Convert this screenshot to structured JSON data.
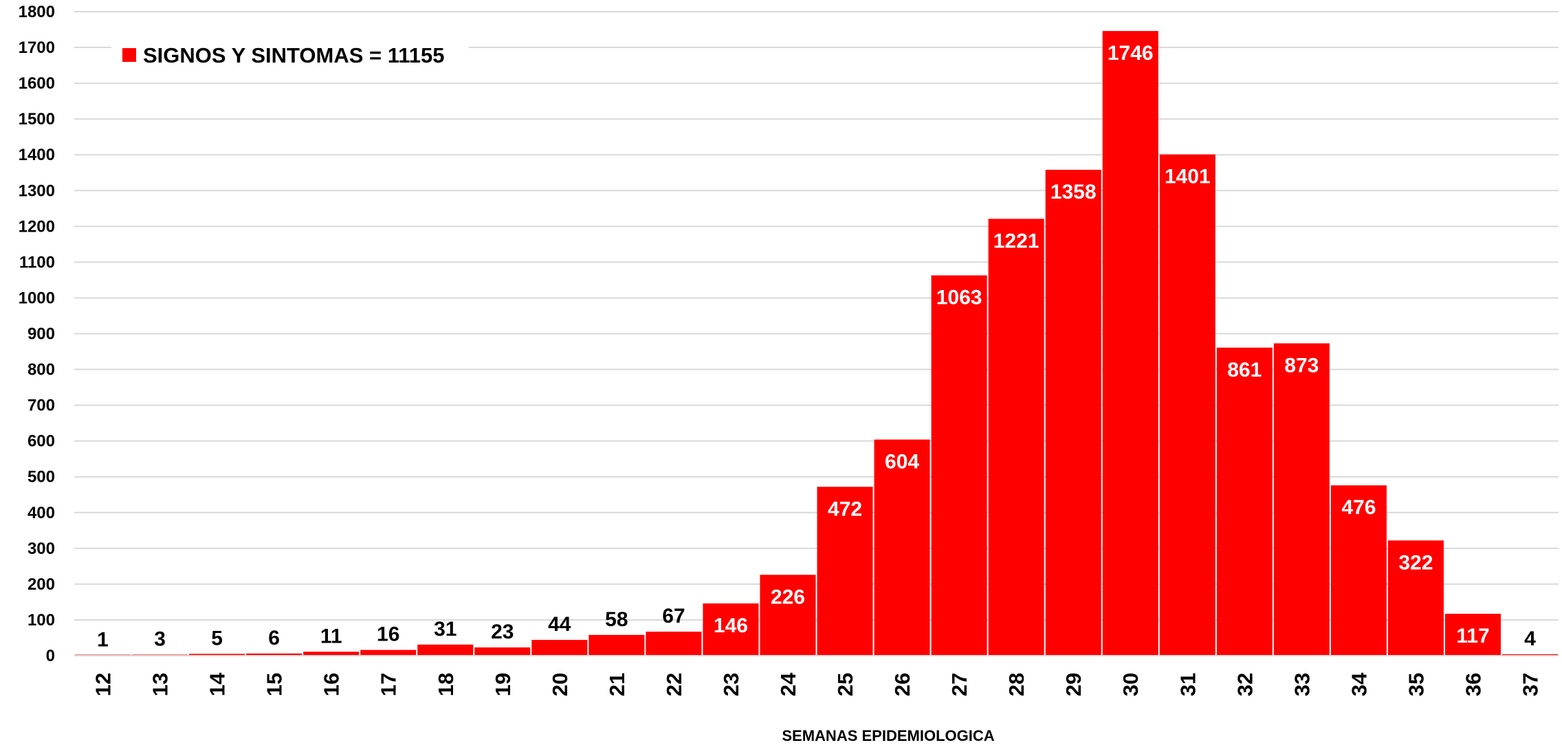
{
  "chart_data": {
    "type": "bar",
    "categories": [
      "12",
      "13",
      "14",
      "15",
      "16",
      "17",
      "18",
      "19",
      "20",
      "21",
      "22",
      "23",
      "24",
      "25",
      "26",
      "27",
      "28",
      "29",
      "30",
      "31",
      "32",
      "33",
      "34",
      "35",
      "36",
      "37"
    ],
    "series": [
      {
        "name": "SIGNOS Y SINTOMAS = 11155",
        "values": [
          1,
          3,
          5,
          6,
          11,
          16,
          31,
          23,
          44,
          58,
          67,
          146,
          226,
          472,
          604,
          1063,
          1221,
          1358,
          1746,
          1401,
          861,
          873,
          476,
          322,
          117,
          4
        ]
      }
    ],
    "xlabel": "SEMANAS EPIDEMIOLOGICA",
    "ylim": [
      0,
      1800
    ],
    "yticks": [
      0,
      100,
      200,
      300,
      400,
      500,
      600,
      700,
      800,
      900,
      1000,
      1100,
      1200,
      1300,
      1400,
      1500,
      1600,
      1700,
      1800
    ],
    "grid": true,
    "legend_position": "top-left",
    "data_labels": true,
    "colors": {
      "bar": "#ff0000",
      "grid": "#d9d9d9",
      "label_inside": "#ffffff",
      "label_outside": "#000000"
    }
  }
}
